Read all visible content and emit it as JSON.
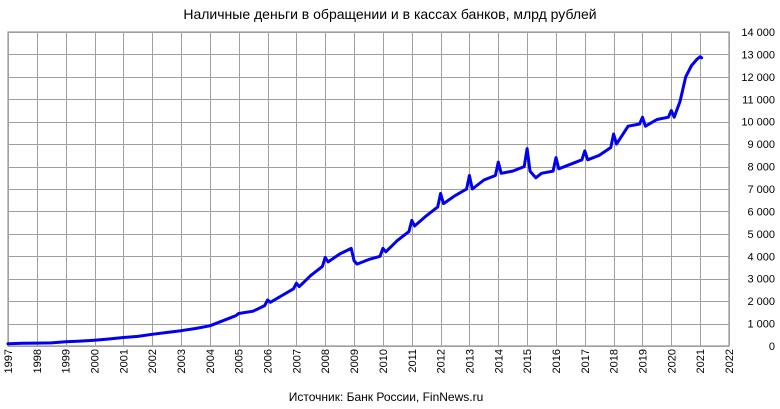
{
  "chart_data": {
    "type": "line",
    "title": "Наличные деньги в обращении и в кассах банков, млрд рублей",
    "source": "Источник: Банк России, FinNews.ru",
    "xlabel": "",
    "ylabel": "",
    "xlim": [
      1997,
      2022
    ],
    "ylim": [
      0,
      14000
    ],
    "x_ticks": [
      "1997",
      "1998",
      "1999",
      "2000",
      "2001",
      "2002",
      "2003",
      "2004",
      "2005",
      "2006",
      "2007",
      "2008",
      "2009",
      "2010",
      "2011",
      "2012",
      "2013",
      "2014",
      "2015",
      "2016",
      "2017",
      "2018",
      "2019",
      "2020",
      "2021",
      "2022"
    ],
    "y_ticks": [
      "0",
      "1 000",
      "2 000",
      "3 000",
      "4 000",
      "5 000",
      "6 000",
      "7 000",
      "8 000",
      "9 000",
      "10 000",
      "11 000",
      "12 000",
      "13 000",
      "14 000"
    ],
    "y_tick_values": [
      0,
      1000,
      2000,
      3000,
      4000,
      5000,
      6000,
      7000,
      8000,
      9000,
      10000,
      11000,
      12000,
      13000,
      14000
    ],
    "grid": true,
    "line_color": "#0000ee",
    "series": [
      {
        "points": [
          [
            1997.0,
            100
          ],
          [
            1997.5,
            120
          ],
          [
            1998.0,
            130
          ],
          [
            1998.5,
            140
          ],
          [
            1999.0,
            190
          ],
          [
            1999.5,
            220
          ],
          [
            2000.0,
            260
          ],
          [
            2000.5,
            310
          ],
          [
            2001.0,
            380
          ],
          [
            2001.5,
            430
          ],
          [
            2002.0,
            520
          ],
          [
            2002.5,
            600
          ],
          [
            2003.0,
            680
          ],
          [
            2003.5,
            780
          ],
          [
            2004.0,
            900
          ],
          [
            2004.5,
            1150
          ],
          [
            2004.9,
            1350
          ],
          [
            2005.0,
            1450
          ],
          [
            2005.5,
            1550
          ],
          [
            2005.9,
            1800
          ],
          [
            2006.0,
            2050
          ],
          [
            2006.1,
            1950
          ],
          [
            2006.5,
            2250
          ],
          [
            2006.9,
            2550
          ],
          [
            2007.0,
            2800
          ],
          [
            2007.1,
            2650
          ],
          [
            2007.5,
            3150
          ],
          [
            2007.9,
            3550
          ],
          [
            2008.0,
            3950
          ],
          [
            2008.1,
            3750
          ],
          [
            2008.5,
            4100
          ],
          [
            2008.9,
            4350
          ],
          [
            2009.0,
            3800
          ],
          [
            2009.1,
            3650
          ],
          [
            2009.5,
            3850
          ],
          [
            2009.9,
            4000
          ],
          [
            2010.0,
            4350
          ],
          [
            2010.1,
            4200
          ],
          [
            2010.5,
            4700
          ],
          [
            2010.9,
            5100
          ],
          [
            2011.0,
            5600
          ],
          [
            2011.1,
            5350
          ],
          [
            2011.5,
            5800
          ],
          [
            2011.9,
            6200
          ],
          [
            2012.0,
            6800
          ],
          [
            2012.1,
            6350
          ],
          [
            2012.5,
            6700
          ],
          [
            2012.9,
            7000
          ],
          [
            2013.0,
            7600
          ],
          [
            2013.1,
            7000
          ],
          [
            2013.5,
            7400
          ],
          [
            2013.9,
            7600
          ],
          [
            2014.0,
            8200
          ],
          [
            2014.1,
            7700
          ],
          [
            2014.5,
            7800
          ],
          [
            2014.9,
            8000
          ],
          [
            2015.0,
            8800
          ],
          [
            2015.1,
            7800
          ],
          [
            2015.3,
            7500
          ],
          [
            2015.5,
            7700
          ],
          [
            2015.9,
            7800
          ],
          [
            2016.0,
            8400
          ],
          [
            2016.1,
            7900
          ],
          [
            2016.5,
            8100
          ],
          [
            2016.9,
            8300
          ],
          [
            2017.0,
            8700
          ],
          [
            2017.1,
            8300
          ],
          [
            2017.5,
            8500
          ],
          [
            2017.9,
            8850
          ],
          [
            2018.0,
            9450
          ],
          [
            2018.1,
            9000
          ],
          [
            2018.5,
            9800
          ],
          [
            2018.9,
            9900
          ],
          [
            2019.0,
            10200
          ],
          [
            2019.1,
            9800
          ],
          [
            2019.5,
            10100
          ],
          [
            2019.9,
            10200
          ],
          [
            2020.0,
            10500
          ],
          [
            2020.1,
            10200
          ],
          [
            2020.3,
            10900
          ],
          [
            2020.5,
            12000
          ],
          [
            2020.7,
            12500
          ],
          [
            2020.9,
            12800
          ],
          [
            2021.0,
            12900
          ],
          [
            2021.05,
            12850
          ]
        ]
      }
    ]
  }
}
